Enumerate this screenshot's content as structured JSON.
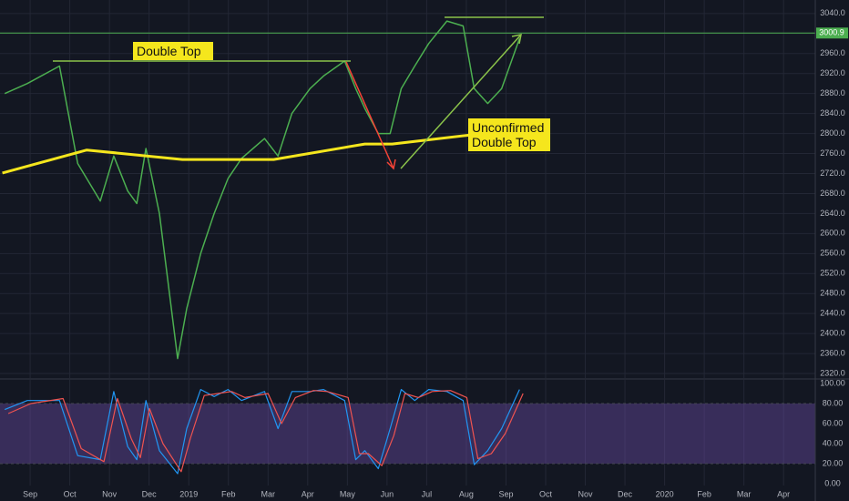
{
  "chart_data": [
    {
      "type": "line",
      "xlim": [
        -0.76,
        19.8
      ],
      "ylim": [
        2311,
        3067
      ],
      "yticks": [
        {
          "value": 2320,
          "label": "2320.0"
        },
        {
          "value": 2360,
          "label": "2360.0"
        },
        {
          "value": 2400,
          "label": "2400.0"
        },
        {
          "value": 2440,
          "label": "2440.0"
        },
        {
          "value": 2480,
          "label": "2480.0"
        },
        {
          "value": 2520,
          "label": "2520.0"
        },
        {
          "value": 2560,
          "label": "2560.0"
        },
        {
          "value": 2600,
          "label": "2600.0"
        },
        {
          "value": 2640,
          "label": "2640.0"
        },
        {
          "value": 2680,
          "label": "2680.0"
        },
        {
          "value": 2720,
          "label": "2720.0"
        },
        {
          "value": 2760,
          "label": "2760.0"
        },
        {
          "value": 2800,
          "label": "2800.0"
        },
        {
          "value": 2840,
          "label": "2840.0"
        },
        {
          "value": 2880,
          "label": "2880.0"
        },
        {
          "value": 2920,
          "label": "2920.0"
        },
        {
          "value": 2960,
          "label": "2960.0"
        },
        {
          "value": 3000,
          "label": "3000.0"
        },
        {
          "value": 3040,
          "label": "3040.0"
        }
      ],
      "grid": true,
      "series": [
        {
          "color": "#4caf50",
          "width": 1.5,
          "x": [
            -0.64,
            -0.07,
            0.74,
            1.2,
            1.77,
            2.11,
            2.46,
            2.69,
            2.92,
            3.26,
            3.72,
            3.95,
            4.3,
            4.64,
            4.99,
            5.33,
            5.91,
            6.25,
            6.6,
            7.06,
            7.4,
            7.93,
            8.21,
            8.44,
            8.78,
            9.08,
            9.36,
            9.7,
            10.05,
            10.51,
            10.92,
            11.2,
            11.54,
            11.89,
            12.34
          ],
          "values": [
            2880,
            2900,
            2935,
            2740,
            2665,
            2755,
            2685,
            2660,
            2770,
            2640,
            2350,
            2450,
            2560,
            2640,
            2710,
            2750,
            2790,
            2755,
            2840,
            2890,
            2915,
            2945,
            2890,
            2850,
            2800,
            2800,
            2890,
            2935,
            2980,
            3025,
            3015,
            2890,
            2860,
            2890,
            2990
          ]
        },
        {
          "color": "#f5e61d",
          "width": 3,
          "x": [
            -0.7,
            1.43,
            3.84,
            6.14,
            8.44,
            9.13,
            11.2
          ],
          "values": [
            2721,
            2767,
            2748,
            2748,
            2779,
            2779,
            2798
          ]
        }
      ],
      "last_value": 3000.9,
      "last_color": "#4caf50",
      "annotations": [
        "Double Top",
        "Unconfirmed Double Top"
      ]
    },
    {
      "type": "line",
      "xlim": [
        -0.76,
        19.8
      ],
      "ylim": [
        -1.8,
        103.6
      ],
      "yticks": [
        {
          "value": 0,
          "label": "0.00"
        },
        {
          "value": 20,
          "label": "20.00"
        },
        {
          "value": 40,
          "label": "40.00"
        },
        {
          "value": 60,
          "label": "60.00"
        },
        {
          "value": 80,
          "label": "80.00"
        },
        {
          "value": 100,
          "label": "100.00"
        }
      ],
      "band": [
        20,
        80
      ],
      "band_color": "#7e57c2",
      "xticks": [
        {
          "value": 0,
          "label": "Sep"
        },
        {
          "value": 1,
          "label": "Oct"
        },
        {
          "value": 2,
          "label": "Nov"
        },
        {
          "value": 3,
          "label": "Dec"
        },
        {
          "value": 4,
          "label": "2019"
        },
        {
          "value": 5,
          "label": "Feb"
        },
        {
          "value": 6,
          "label": "Mar"
        },
        {
          "value": 7,
          "label": "Apr"
        },
        {
          "value": 8,
          "label": "May"
        },
        {
          "value": 9,
          "label": "Jun"
        },
        {
          "value": 10,
          "label": "Jul"
        },
        {
          "value": 11,
          "label": "Aug"
        },
        {
          "value": 12,
          "label": "Sep"
        },
        {
          "value": 13,
          "label": "Oct"
        },
        {
          "value": 14,
          "label": "Nov"
        },
        {
          "value": 15,
          "label": "Dec"
        },
        {
          "value": 16,
          "label": "2020"
        },
        {
          "value": 17,
          "label": "Feb"
        },
        {
          "value": 18,
          "label": "Mar"
        },
        {
          "value": 19,
          "label": "Apr"
        }
      ],
      "series": [
        {
          "color": "#2196f3",
          "width": 1.2,
          "x": [
            -0.64,
            -0.07,
            0.74,
            1.2,
            1.77,
            2.11,
            2.46,
            2.69,
            2.92,
            3.26,
            3.72,
            3.95,
            4.3,
            4.64,
            4.99,
            5.33,
            5.91,
            6.25,
            6.6,
            7.06,
            7.4,
            7.93,
            8.21,
            8.44,
            8.78,
            9.08,
            9.36,
            9.7,
            10.05,
            10.51,
            10.92,
            11.2,
            11.54,
            11.89,
            12.34
          ],
          "values": [
            74,
            83,
            83,
            28,
            24,
            92,
            37,
            24,
            83,
            33,
            10,
            55,
            94,
            87,
            94,
            83,
            92,
            55,
            92,
            92,
            94,
            83,
            24,
            33,
            15,
            55,
            94,
            83,
            94,
            92,
            83,
            19,
            33,
            55,
            94
          ]
        },
        {
          "color": "#ef5350",
          "width": 1.2,
          "x": [
            -0.55,
            0.02,
            0.83,
            1.29,
            1.86,
            2.2,
            2.55,
            2.78,
            3.01,
            3.35,
            3.81,
            4.04,
            4.39,
            4.73,
            5.08,
            5.42,
            6.0,
            6.34,
            6.69,
            7.15,
            7.49,
            8.02,
            8.3,
            8.53,
            8.87,
            9.17,
            9.45,
            9.79,
            10.14,
            10.6,
            11.01,
            11.29,
            11.63,
            11.98,
            12.43
          ],
          "values": [
            70,
            80,
            85,
            35,
            22,
            85,
            45,
            26,
            75,
            40,
            12,
            45,
            88,
            90,
            92,
            86,
            90,
            60,
            86,
            93,
            92,
            86,
            30,
            30,
            18,
            48,
            90,
            86,
            92,
            93,
            86,
            25,
            30,
            50,
            90
          ]
        }
      ]
    }
  ]
}
